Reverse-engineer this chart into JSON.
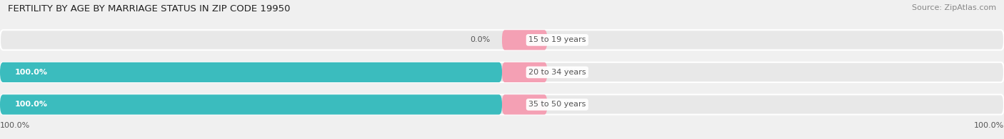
{
  "title": "FERTILITY BY AGE BY MARRIAGE STATUS IN ZIP CODE 19950",
  "source": "Source: ZipAtlas.com",
  "categories": [
    "15 to 19 years",
    "20 to 34 years",
    "35 to 50 years"
  ],
  "married_values": [
    0.0,
    100.0,
    100.0
  ],
  "unmarried_values": [
    0.0,
    0.0,
    0.0
  ],
  "married_color": "#3bbcbe",
  "unmarried_color": "#f4a0b4",
  "bar_bg_color": "#e8e8e8",
  "bar_height": 0.62,
  "title_fontsize": 9.5,
  "label_fontsize": 8,
  "tick_fontsize": 8,
  "source_fontsize": 8,
  "legend_fontsize": 9,
  "fig_bg_color": "#f0f0f0",
  "bar_area_bg": "#f8f8f8",
  "text_color_dark": "#555555",
  "text_color_white": "#ffffff"
}
